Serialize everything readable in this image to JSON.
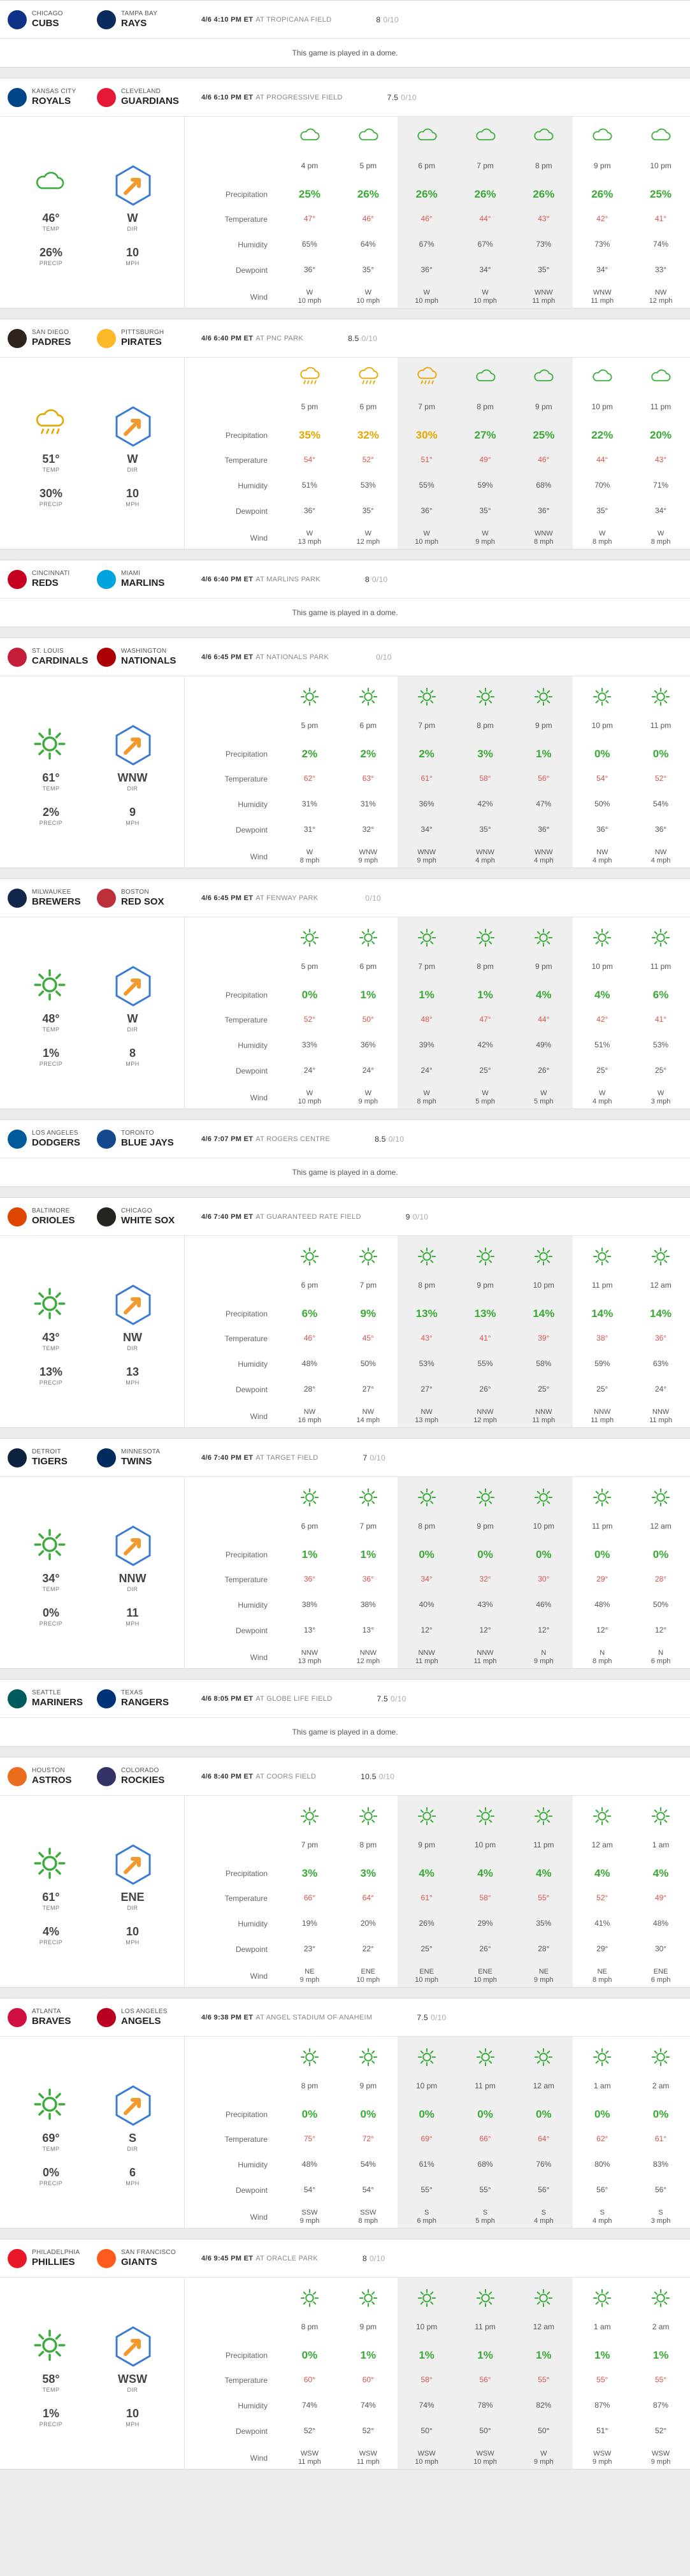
{
  "labels": {
    "temp": "TEMP",
    "dir": "DIR",
    "precip": "PRECIP",
    "mph": "MPH",
    "rows": [
      "Precipitation",
      "Temperature",
      "Humidity",
      "Dewpoint",
      "Wind"
    ],
    "dome": "This game is played in a dome.",
    "rating_unit": "0/10"
  },
  "games": [
    {
      "away": {
        "city": "CHICAGO",
        "name": "CUBS",
        "color": "#0e3386"
      },
      "home": {
        "city": "TAMPA BAY",
        "name": "RAYS",
        "color": "#092c5c"
      },
      "datetime": "4/6 4:10 PM ET",
      "venue": "AT TROPICANA FIELD",
      "rating": "8",
      "dome": true
    },
    {
      "away": {
        "city": "KANSAS CITY",
        "name": "ROYALS",
        "color": "#004687"
      },
      "home": {
        "city": "CLEVELAND",
        "name": "GUARDIANS",
        "color": "#e31937"
      },
      "datetime": "4/6 6:10 PM ET",
      "venue": "AT PROGRESSIVE FIELD",
      "rating": "7.5",
      "dome": false,
      "icon": "cloud",
      "temp": "46°",
      "dir": "W",
      "precip": "26%",
      "mph": "10",
      "hours": [
        {
          "t": "4 pm",
          "p": "25%",
          "tmp": "47°",
          "h": "65%",
          "d": "36°",
          "w1": "W",
          "w2": "10 mph",
          "ic": "cloud"
        },
        {
          "t": "5 pm",
          "p": "26%",
          "tmp": "46°",
          "h": "64%",
          "d": "35°",
          "w1": "W",
          "w2": "10 mph",
          "ic": "cloud"
        },
        {
          "t": "6 pm",
          "p": "26%",
          "tmp": "46°",
          "h": "67%",
          "d": "36°",
          "w1": "W",
          "w2": "10 mph",
          "ic": "cloud"
        },
        {
          "t": "7 pm",
          "p": "26%",
          "tmp": "44°",
          "h": "67%",
          "d": "34°",
          "w1": "W",
          "w2": "10 mph",
          "ic": "cloud"
        },
        {
          "t": "8 pm",
          "p": "26%",
          "tmp": "43°",
          "h": "73%",
          "d": "35°",
          "w1": "WNW",
          "w2": "11 mph",
          "ic": "cloud"
        },
        {
          "t": "9 pm",
          "p": "26%",
          "tmp": "42°",
          "h": "73%",
          "d": "34°",
          "w1": "WNW",
          "w2": "11 mph",
          "ic": "cloud"
        },
        {
          "t": "10 pm",
          "p": "25%",
          "tmp": "41°",
          "h": "74%",
          "d": "33°",
          "w1": "NW",
          "w2": "12 mph",
          "ic": "cloud"
        }
      ]
    },
    {
      "away": {
        "city": "SAN DIEGO",
        "name": "PADRES",
        "color": "#2f241d"
      },
      "home": {
        "city": "PITTSBURGH",
        "name": "PIRATES",
        "color": "#fdb827"
      },
      "datetime": "4/6 6:40 PM ET",
      "venue": "AT PNC PARK",
      "rating": "8.5",
      "dome": false,
      "icon": "rain",
      "temp": "51°",
      "dir": "W",
      "precip": "30%",
      "mph": "10",
      "hours": [
        {
          "t": "5 pm",
          "p": "35%",
          "tmp": "54°",
          "h": "51%",
          "d": "36°",
          "w1": "W",
          "w2": "13 mph",
          "ic": "rain",
          "pc": "ye"
        },
        {
          "t": "6 pm",
          "p": "32%",
          "tmp": "52°",
          "h": "53%",
          "d": "35°",
          "w1": "W",
          "w2": "12 mph",
          "ic": "rain",
          "pc": "ye"
        },
        {
          "t": "7 pm",
          "p": "30%",
          "tmp": "51°",
          "h": "55%",
          "d": "36°",
          "w1": "W",
          "w2": "10 mph",
          "ic": "rain",
          "pc": "ye"
        },
        {
          "t": "8 pm",
          "p": "27%",
          "tmp": "49°",
          "h": "59%",
          "d": "35°",
          "w1": "W",
          "w2": "9 mph",
          "ic": "cloud"
        },
        {
          "t": "9 pm",
          "p": "25%",
          "tmp": "46°",
          "h": "68%",
          "d": "36°",
          "w1": "WNW",
          "w2": "8 mph",
          "ic": "cloud"
        },
        {
          "t": "10 pm",
          "p": "22%",
          "tmp": "44°",
          "h": "70%",
          "d": "35°",
          "w1": "W",
          "w2": "8 mph",
          "ic": "cloud"
        },
        {
          "t": "11 pm",
          "p": "20%",
          "tmp": "43°",
          "h": "71%",
          "d": "34°",
          "w1": "W",
          "w2": "8 mph",
          "ic": "cloud"
        }
      ]
    },
    {
      "away": {
        "city": "CINCINNATI",
        "name": "REDS",
        "color": "#c6011f"
      },
      "home": {
        "city": "MIAMI",
        "name": "MARLINS",
        "color": "#00a3e0"
      },
      "datetime": "4/6 6:40 PM ET",
      "venue": "AT MARLINS PARK",
      "rating": "8",
      "dome": true
    },
    {
      "away": {
        "city": "ST. LOUIS",
        "name": "CARDINALS",
        "color": "#c41e3a"
      },
      "home": {
        "city": "WASHINGTON",
        "name": "NATIONALS",
        "color": "#ab0003"
      },
      "datetime": "4/6 6:45 PM ET",
      "venue": "AT NATIONALS PARK",
      "rating": "",
      "dome": false,
      "icon": "sun",
      "temp": "61°",
      "dir": "WNW",
      "precip": "2%",
      "mph": "9",
      "hours": [
        {
          "t": "5 pm",
          "p": "2%",
          "tmp": "62°",
          "h": "31%",
          "d": "31°",
          "w1": "W",
          "w2": "8 mph",
          "ic": "sun"
        },
        {
          "t": "6 pm",
          "p": "2%",
          "tmp": "63°",
          "h": "31%",
          "d": "32°",
          "w1": "WNW",
          "w2": "9 mph",
          "ic": "sun"
        },
        {
          "t": "7 pm",
          "p": "2%",
          "tmp": "61°",
          "h": "36%",
          "d": "34°",
          "w1": "WNW",
          "w2": "9 mph",
          "ic": "sun"
        },
        {
          "t": "8 pm",
          "p": "3%",
          "tmp": "58°",
          "h": "42%",
          "d": "35°",
          "w1": "WNW",
          "w2": "4 mph",
          "ic": "sun"
        },
        {
          "t": "9 pm",
          "p": "1%",
          "tmp": "56°",
          "h": "47%",
          "d": "36°",
          "w1": "WNW",
          "w2": "4 mph",
          "ic": "sun"
        },
        {
          "t": "10 pm",
          "p": "0%",
          "tmp": "54°",
          "h": "50%",
          "d": "36°",
          "w1": "NW",
          "w2": "4 mph",
          "ic": "sun"
        },
        {
          "t": "11 pm",
          "p": "0%",
          "tmp": "52°",
          "h": "54%",
          "d": "36°",
          "w1": "NW",
          "w2": "4 mph",
          "ic": "sun"
        }
      ]
    },
    {
      "away": {
        "city": "MILWAUKEE",
        "name": "BREWERS",
        "color": "#12284b"
      },
      "home": {
        "city": "BOSTON",
        "name": "RED SOX",
        "color": "#bd3039"
      },
      "datetime": "4/6 6:45 PM ET",
      "venue": "AT FENWAY PARK",
      "rating": "",
      "dome": false,
      "icon": "sun",
      "temp": "48°",
      "dir": "W",
      "precip": "1%",
      "mph": "8",
      "hours": [
        {
          "t": "5 pm",
          "p": "0%",
          "tmp": "52°",
          "h": "33%",
          "d": "24°",
          "w1": "W",
          "w2": "10 mph",
          "ic": "sun"
        },
        {
          "t": "6 pm",
          "p": "1%",
          "tmp": "50°",
          "h": "36%",
          "d": "24°",
          "w1": "W",
          "w2": "9 mph",
          "ic": "sun"
        },
        {
          "t": "7 pm",
          "p": "1%",
          "tmp": "48°",
          "h": "39%",
          "d": "24°",
          "w1": "W",
          "w2": "8 mph",
          "ic": "sun"
        },
        {
          "t": "8 pm",
          "p": "1%",
          "tmp": "47°",
          "h": "42%",
          "d": "25°",
          "w1": "W",
          "w2": "5 mph",
          "ic": "sun"
        },
        {
          "t": "9 pm",
          "p": "4%",
          "tmp": "44°",
          "h": "49%",
          "d": "26°",
          "w1": "W",
          "w2": "5 mph",
          "ic": "sun"
        },
        {
          "t": "10 pm",
          "p": "4%",
          "tmp": "42°",
          "h": "51%",
          "d": "25°",
          "w1": "W",
          "w2": "4 mph",
          "ic": "sun"
        },
        {
          "t": "11 pm",
          "p": "6%",
          "tmp": "41°",
          "h": "53%",
          "d": "25°",
          "w1": "W",
          "w2": "3 mph",
          "ic": "sun"
        }
      ]
    },
    {
      "away": {
        "city": "LOS ANGELES",
        "name": "DODGERS",
        "color": "#005a9c"
      },
      "home": {
        "city": "TORONTO",
        "name": "BLUE JAYS",
        "color": "#134a8e"
      },
      "datetime": "4/6 7:07 PM ET",
      "venue": "AT ROGERS CENTRE",
      "rating": "8.5",
      "dome": true
    },
    {
      "away": {
        "city": "BALTIMORE",
        "name": "ORIOLES",
        "color": "#df4601"
      },
      "home": {
        "city": "CHICAGO",
        "name": "WHITE SOX",
        "color": "#27251f"
      },
      "datetime": "4/6 7:40 PM ET",
      "venue": "AT GUARANTEED RATE FIELD",
      "rating": "9",
      "dome": false,
      "icon": "sun",
      "temp": "43°",
      "dir": "NW",
      "precip": "13%",
      "mph": "13",
      "hours": [
        {
          "t": "6 pm",
          "p": "6%",
          "tmp": "46°",
          "h": "48%",
          "d": "28°",
          "w1": "NW",
          "w2": "16 mph",
          "ic": "sun"
        },
        {
          "t": "7 pm",
          "p": "9%",
          "tmp": "45°",
          "h": "50%",
          "d": "27°",
          "w1": "NW",
          "w2": "14 mph",
          "ic": "sun"
        },
        {
          "t": "8 pm",
          "p": "13%",
          "tmp": "43°",
          "h": "53%",
          "d": "27°",
          "w1": "NW",
          "w2": "13 mph",
          "ic": "sun"
        },
        {
          "t": "9 pm",
          "p": "13%",
          "tmp": "41°",
          "h": "55%",
          "d": "26°",
          "w1": "NNW",
          "w2": "12 mph",
          "ic": "sun"
        },
        {
          "t": "10 pm",
          "p": "14%",
          "tmp": "39°",
          "h": "58%",
          "d": "25°",
          "w1": "NNW",
          "w2": "11 mph",
          "ic": "sun"
        },
        {
          "t": "11 pm",
          "p": "14%",
          "tmp": "38°",
          "h": "59%",
          "d": "25°",
          "w1": "NNW",
          "w2": "11 mph",
          "ic": "sun"
        },
        {
          "t": "12 am",
          "p": "14%",
          "tmp": "36°",
          "h": "63%",
          "d": "24°",
          "w1": "NNW",
          "w2": "11 mph",
          "ic": "sun"
        }
      ]
    },
    {
      "away": {
        "city": "DETROIT",
        "name": "TIGERS",
        "color": "#0c2340"
      },
      "home": {
        "city": "MINNESOTA",
        "name": "TWINS",
        "color": "#002b5c"
      },
      "datetime": "4/6 7:40 PM ET",
      "venue": "AT TARGET FIELD",
      "rating": "7",
      "dome": false,
      "icon": "sun",
      "temp": "34°",
      "dir": "NNW",
      "precip": "0%",
      "mph": "11",
      "hours": [
        {
          "t": "6 pm",
          "p": "1%",
          "tmp": "36°",
          "h": "38%",
          "d": "13°",
          "w1": "NNW",
          "w2": "13 mph",
          "ic": "sun"
        },
        {
          "t": "7 pm",
          "p": "1%",
          "tmp": "36°",
          "h": "38%",
          "d": "13°",
          "w1": "NNW",
          "w2": "12 mph",
          "ic": "sun"
        },
        {
          "t": "8 pm",
          "p": "0%",
          "tmp": "34°",
          "h": "40%",
          "d": "12°",
          "w1": "NNW",
          "w2": "11 mph",
          "ic": "sun"
        },
        {
          "t": "9 pm",
          "p": "0%",
          "tmp": "32°",
          "h": "43%",
          "d": "12°",
          "w1": "NNW",
          "w2": "11 mph",
          "ic": "sun"
        },
        {
          "t": "10 pm",
          "p": "0%",
          "tmp": "30°",
          "h": "46%",
          "d": "12°",
          "w1": "N",
          "w2": "9 mph",
          "ic": "sun"
        },
        {
          "t": "11 pm",
          "p": "0%",
          "tmp": "29°",
          "h": "48%",
          "d": "12°",
          "w1": "N",
          "w2": "8 mph",
          "ic": "sun"
        },
        {
          "t": "12 am",
          "p": "0%",
          "tmp": "28°",
          "h": "50%",
          "d": "12°",
          "w1": "N",
          "w2": "6 mph",
          "ic": "sun"
        }
      ]
    },
    {
      "away": {
        "city": "SEATTLE",
        "name": "MARINERS",
        "color": "#005c5c"
      },
      "home": {
        "city": "TEXAS",
        "name": "RANGERS",
        "color": "#003278"
      },
      "datetime": "4/6 8:05 PM ET",
      "venue": "AT GLOBE LIFE FIELD",
      "rating": "7.5",
      "dome": true
    },
    {
      "away": {
        "city": "HOUSTON",
        "name": "ASTROS",
        "color": "#eb6e1f"
      },
      "home": {
        "city": "COLORADO",
        "name": "ROCKIES",
        "color": "#333366"
      },
      "datetime": "4/6 8:40 PM ET",
      "venue": "AT COORS FIELD",
      "rating": "10.5",
      "dome": false,
      "icon": "sun",
      "temp": "61°",
      "dir": "ENE",
      "precip": "4%",
      "mph": "10",
      "hours": [
        {
          "t": "7 pm",
          "p": "3%",
          "tmp": "66°",
          "h": "19%",
          "d": "23°",
          "w1": "NE",
          "w2": "9 mph",
          "ic": "sun"
        },
        {
          "t": "8 pm",
          "p": "3%",
          "tmp": "64°",
          "h": "20%",
          "d": "22°",
          "w1": "ENE",
          "w2": "10 mph",
          "ic": "sun"
        },
        {
          "t": "9 pm",
          "p": "4%",
          "tmp": "61°",
          "h": "26%",
          "d": "25°",
          "w1": "ENE",
          "w2": "10 mph",
          "ic": "sun"
        },
        {
          "t": "10 pm",
          "p": "4%",
          "tmp": "58°",
          "h": "29%",
          "d": "26°",
          "w1": "ENE",
          "w2": "10 mph",
          "ic": "sun"
        },
        {
          "t": "11 pm",
          "p": "4%",
          "tmp": "55°",
          "h": "35%",
          "d": "28°",
          "w1": "NE",
          "w2": "9 mph",
          "ic": "sun"
        },
        {
          "t": "12 am",
          "p": "4%",
          "tmp": "52°",
          "h": "41%",
          "d": "29°",
          "w1": "NE",
          "w2": "8 mph",
          "ic": "sun"
        },
        {
          "t": "1 am",
          "p": "4%",
          "tmp": "49°",
          "h": "48%",
          "d": "30°",
          "w1": "ENE",
          "w2": "6 mph",
          "ic": "sun"
        }
      ]
    },
    {
      "away": {
        "city": "ATLANTA",
        "name": "BRAVES",
        "color": "#ce1141"
      },
      "home": {
        "city": "LOS ANGELES",
        "name": "ANGELS",
        "color": "#ba0021"
      },
      "datetime": "4/6 9:38 PM ET",
      "venue": "AT ANGEL STADIUM OF ANAHEIM",
      "rating": "7.5",
      "dome": false,
      "icon": "sun",
      "temp": "69°",
      "dir": "S",
      "precip": "0%",
      "mph": "6",
      "hours": [
        {
          "t": "8 pm",
          "p": "0%",
          "tmp": "75°",
          "h": "48%",
          "d": "54°",
          "w1": "SSW",
          "w2": "9 mph",
          "ic": "sun"
        },
        {
          "t": "9 pm",
          "p": "0%",
          "tmp": "72°",
          "h": "54%",
          "d": "54°",
          "w1": "SSW",
          "w2": "8 mph",
          "ic": "sun"
        },
        {
          "t": "10 pm",
          "p": "0%",
          "tmp": "69°",
          "h": "61%",
          "d": "55°",
          "w1": "S",
          "w2": "6 mph",
          "ic": "sun"
        },
        {
          "t": "11 pm",
          "p": "0%",
          "tmp": "66°",
          "h": "68%",
          "d": "55°",
          "w1": "S",
          "w2": "5 mph",
          "ic": "sun"
        },
        {
          "t": "12 am",
          "p": "0%",
          "tmp": "64°",
          "h": "76%",
          "d": "56°",
          "w1": "S",
          "w2": "4 mph",
          "ic": "sun"
        },
        {
          "t": "1 am",
          "p": "0%",
          "tmp": "62°",
          "h": "80%",
          "d": "56°",
          "w1": "S",
          "w2": "4 mph",
          "ic": "sun"
        },
        {
          "t": "2 am",
          "p": "0%",
          "tmp": "61°",
          "h": "83%",
          "d": "56°",
          "w1": "S",
          "w2": "3 mph",
          "ic": "sun"
        }
      ]
    },
    {
      "away": {
        "city": "PHILADELPHIA",
        "name": "PHILLIES",
        "color": "#e81828"
      },
      "home": {
        "city": "SAN FRANCISCO",
        "name": "GIANTS",
        "color": "#fd5a1e"
      },
      "datetime": "4/6 9:45 PM ET",
      "venue": "AT ORACLE PARK",
      "rating": "8",
      "dome": false,
      "icon": "sun",
      "temp": "58°",
      "dir": "WSW",
      "precip": "1%",
      "mph": "10",
      "hours": [
        {
          "t": "8 pm",
          "p": "0%",
          "tmp": "60°",
          "h": "74%",
          "d": "52°",
          "w1": "WSW",
          "w2": "11 mph",
          "ic": "sun"
        },
        {
          "t": "9 pm",
          "p": "1%",
          "tmp": "60°",
          "h": "74%",
          "d": "52°",
          "w1": "WSW",
          "w2": "11 mph",
          "ic": "sun"
        },
        {
          "t": "10 pm",
          "p": "1%",
          "tmp": "58°",
          "h": "74%",
          "d": "50°",
          "w1": "WSW",
          "w2": "10 mph",
          "ic": "sun"
        },
        {
          "t": "11 pm",
          "p": "1%",
          "tmp": "56°",
          "h": "78%",
          "d": "50°",
          "w1": "WSW",
          "w2": "10 mph",
          "ic": "sun"
        },
        {
          "t": "12 am",
          "p": "1%",
          "tmp": "55°",
          "h": "82%",
          "d": "50°",
          "w1": "W",
          "w2": "9 mph",
          "ic": "sun"
        },
        {
          "t": "1 am",
          "p": "1%",
          "tmp": "55°",
          "h": "87%",
          "d": "51°",
          "w1": "WSW",
          "w2": "9 mph",
          "ic": "sun"
        },
        {
          "t": "2 am",
          "p": "1%",
          "tmp": "55°",
          "h": "87%",
          "d": "52°",
          "w1": "WSW",
          "w2": "9 mph",
          "ic": "sun"
        }
      ]
    }
  ]
}
